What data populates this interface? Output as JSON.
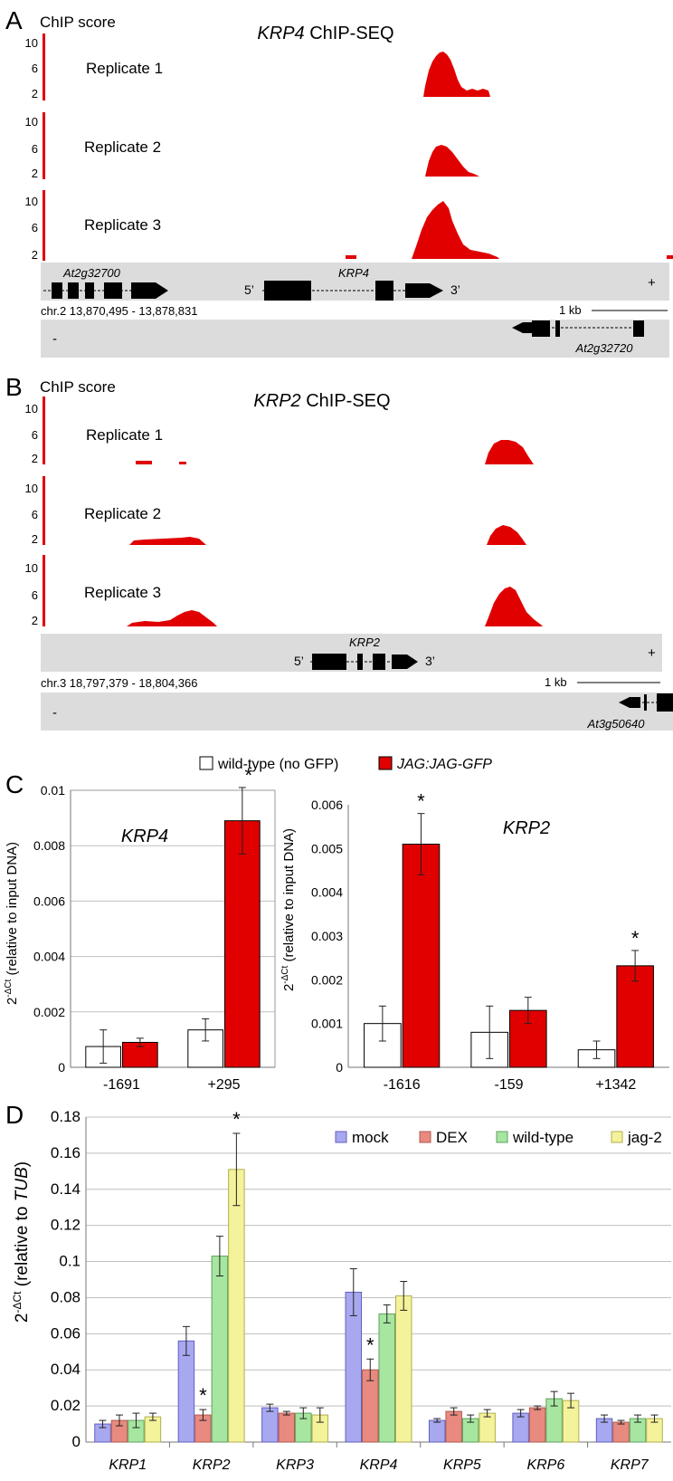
{
  "panel_a": {
    "letter": "A",
    "y_label": "ChIP score",
    "title_gene": "KRP4",
    "title_rest": " ChIP-SEQ",
    "ticks": [
      "10",
      "6",
      "2"
    ],
    "replicates": [
      "Replicate 1",
      "Replicate 2",
      "Replicate 3"
    ],
    "plus_strand_genes": [
      "At2g32700",
      "KRP4"
    ],
    "five_prime": "5’",
    "three_prime": "3’",
    "plus": "+",
    "minus": "-",
    "coords": "chr.2 13,870,495 - 13,878,831",
    "scale": "1 kb",
    "minus_strand_gene": "At2g32720"
  },
  "panel_b": {
    "letter": "B",
    "y_label": "ChIP score",
    "title_gene": "KRP2",
    "title_rest": " ChIP-SEQ",
    "ticks": [
      "10",
      "6",
      "2"
    ],
    "replicates": [
      "Replicate 1",
      "Replicate 2",
      "Replicate 3"
    ],
    "plus_strand_gene": "KRP2",
    "five_prime": "5’",
    "three_prime": "3’",
    "plus": "+",
    "minus": "-",
    "coords": "chr.3 18,797,379 - 18,804,366",
    "scale": "1 kb",
    "minus_strand_gene": "At3g50640"
  },
  "panel_c": {
    "letter": "C",
    "legend": [
      "wild-type (no GFP)",
      "JAG:JAG-GFP"
    ],
    "y_label_main": "2",
    "y_label_sup": "-ΔCt",
    "y_label_rest": " (relative to input DNA)"
  },
  "panel_d": {
    "letter": "D",
    "y_label_main": "2",
    "y_label_sup": "-ΔCt",
    "y_label_rest": " (relative to ",
    "y_label_gene": "TUB",
    "y_label_end": ")"
  },
  "colors": {
    "red": "#e00000",
    "track_bg": "#dcdcdc",
    "mock": "#a8a8f0",
    "dex": "#e88a80",
    "wildtype": "#a6e6a0",
    "jag2": "#f4f29a"
  },
  "chart_data": [
    {
      "type": "bar",
      "title": "KRP4",
      "categories": [
        "-1691",
        "+295"
      ],
      "series": [
        {
          "name": "wild-type (no GFP)",
          "values": [
            0.00075,
            0.00135
          ],
          "errors": [
            0.0006,
            0.0004
          ]
        },
        {
          "name": "JAG:JAG-GFP",
          "values": [
            0.0009,
            0.0089
          ],
          "errors": [
            0.00015,
            0.0012
          ]
        }
      ],
      "ylim": [
        0,
        0.01
      ],
      "yticks": [
        "0",
        "0.002",
        "0.004",
        "0.006",
        "0.008",
        "0.01"
      ],
      "significance": [
        "",
        "*"
      ],
      "ylabel": "2-ΔCt (relative to input DNA)"
    },
    {
      "type": "bar",
      "title": "KRP2",
      "categories": [
        "-1616",
        "-159",
        "+1342"
      ],
      "series": [
        {
          "name": "wild-type (no GFP)",
          "values": [
            0.001,
            0.0008,
            0.0004
          ],
          "errors": [
            0.0004,
            0.0006,
            0.0002
          ]
        },
        {
          "name": "JAG:JAG-GFP",
          "values": [
            0.0051,
            0.0013,
            0.00232
          ],
          "errors": [
            0.0007,
            0.0003,
            0.00035
          ]
        }
      ],
      "ylim": [
        0,
        0.006
      ],
      "yticks": [
        "0",
        "0.001",
        "0.002",
        "0.003",
        "0.004",
        "0.005",
        "0.006"
      ],
      "significance": [
        "*",
        "",
        "*"
      ]
    },
    {
      "type": "bar",
      "categories": [
        "KRP1",
        "KRP2",
        "KRP3",
        "KRP4",
        "KRP5",
        "KRP6",
        "KRP7"
      ],
      "series": [
        {
          "name": "mock",
          "values": [
            0.01,
            0.056,
            0.019,
            0.083,
            0.012,
            0.016,
            0.013
          ],
          "errors": [
            0.002,
            0.008,
            0.002,
            0.013,
            0.001,
            0.002,
            0.002
          ]
        },
        {
          "name": "DEX",
          "values": [
            0.012,
            0.015,
            0.016,
            0.04,
            0.017,
            0.019,
            0.011
          ],
          "errors": [
            0.003,
            0.003,
            0.001,
            0.006,
            0.002,
            0.001,
            0.001
          ]
        },
        {
          "name": "wild-type",
          "values": [
            0.012,
            0.103,
            0.016,
            0.071,
            0.013,
            0.024,
            0.013
          ],
          "errors": [
            0.004,
            0.011,
            0.003,
            0.005,
            0.002,
            0.004,
            0.002
          ]
        },
        {
          "name": "jag-2",
          "values": [
            0.014,
            0.151,
            0.015,
            0.081,
            0.016,
            0.023,
            0.013
          ],
          "errors": [
            0.002,
            0.02,
            0.004,
            0.008,
            0.002,
            0.004,
            0.002
          ]
        }
      ],
      "significance": [
        [],
        [
          "DEX",
          "jag-2"
        ],
        [],
        [
          "DEX"
        ],
        [],
        [],
        []
      ],
      "ylim": [
        0,
        0.18
      ],
      "yticks": [
        "0",
        "0.02",
        "0.04",
        "0.06",
        "0.08",
        "0.1",
        "0.12",
        "0.14",
        "0.16",
        "0.18"
      ],
      "ylabel": "2-ΔCt (relative to TUB)"
    }
  ]
}
